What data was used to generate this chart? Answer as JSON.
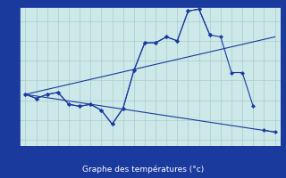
{
  "bg_color": "#cce8e8",
  "line_color": "#1a3a9e",
  "grid_color": "#aacccc",
  "xlabel": "Graphe des températures (°c)",
  "xlabel_color": "#ffffff",
  "xlabel_bg": "#1a3a9e",
  "xlim": [
    -0.5,
    23.5
  ],
  "ylim": [
    7.7,
    14.7
  ],
  "yticks": [
    8,
    9,
    10,
    11,
    12,
    13,
    14
  ],
  "xticks": [
    0,
    1,
    2,
    3,
    4,
    5,
    6,
    7,
    8,
    9,
    10,
    11,
    12,
    13,
    14,
    15,
    16,
    17,
    18,
    19,
    20,
    21,
    22,
    23
  ],
  "series1_x": [
    0,
    1,
    2,
    3,
    4,
    5,
    6,
    7,
    8,
    9,
    10,
    11,
    12,
    13,
    14,
    15,
    16,
    17,
    18,
    19,
    20,
    21
  ],
  "series1_y": [
    10.3,
    10.1,
    10.3,
    10.4,
    9.8,
    9.7,
    9.8,
    9.5,
    8.8,
    9.6,
    11.5,
    12.9,
    12.9,
    13.2,
    13.0,
    14.5,
    14.6,
    13.3,
    13.2,
    11.4,
    11.4,
    9.7
  ],
  "series2_x": [
    0,
    1,
    2,
    3,
    4,
    5,
    6,
    7,
    8,
    9,
    10,
    11,
    12,
    13,
    14,
    15,
    16,
    17,
    22,
    23
  ],
  "series2_y": [
    10.3,
    10.1,
    10.3,
    10.4,
    9.8,
    9.7,
    9.8,
    9.5,
    8.8,
    9.6,
    11.5,
    12.9,
    12.9,
    13.2,
    13.0,
    14.5,
    14.6,
    13.3,
    8.5,
    8.4
  ],
  "line3_x": [
    0,
    23
  ],
  "line3_y": [
    10.3,
    13.2
  ],
  "line4_x": [
    0,
    23
  ],
  "line4_y": [
    10.3,
    8.4
  ]
}
